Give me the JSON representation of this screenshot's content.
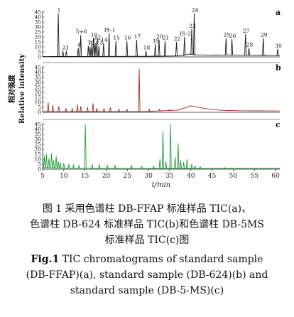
{
  "chart_data": {
    "type": "line",
    "ylabel_cn": "相对强度",
    "ylabel_en": "Relative intensity",
    "xlabel": "t/min",
    "xlim": [
      5,
      61
    ],
    "ylim": [
      0,
      45
    ],
    "x_ticks": [
      5,
      10,
      15,
      20,
      25,
      30,
      35,
      40,
      45,
      50,
      55,
      60
    ],
    "y_ticks": [
      0,
      5,
      10,
      15,
      20,
      25,
      30,
      35,
      40,
      45
    ],
    "panels": [
      {
        "label": "a",
        "color": "#1a1a1a",
        "baseline": [
          [
            5,
            0.3
          ],
          [
            30,
            0.6
          ],
          [
            38,
            1.0
          ],
          [
            39.5,
            2.8
          ],
          [
            41,
            2.0
          ],
          [
            45,
            1.8
          ],
          [
            55,
            1.5
          ],
          [
            61,
            1.3
          ]
        ],
        "peaks": [
          {
            "x": 8.7,
            "y": 44,
            "label": "1"
          },
          {
            "x": 9.8,
            "y": 6,
            "label": "2"
          },
          {
            "x": 10.6,
            "y": 6,
            "label": "3"
          },
          {
            "x": 13.4,
            "y": 9,
            "label": "4"
          },
          {
            "x": 14.0,
            "y": 22,
            "label": "5+6"
          },
          {
            "x": 15.8,
            "y": 11,
            "label": "7"
          },
          {
            "x": 16.2,
            "y": 10,
            "label": "8"
          },
          {
            "x": 16.6,
            "y": 11,
            "label": "9"
          },
          {
            "x": 17.0,
            "y": 19,
            "label": "10"
          },
          {
            "x": 17.4,
            "y": 14,
            "label": "11"
          },
          {
            "x": 17.8,
            "y": 16,
            "label": "12"
          },
          {
            "x": 18.3,
            "y": 11,
            "label": "13"
          },
          {
            "x": 19.4,
            "y": 14,
            "label": "14"
          },
          {
            "x": 20.7,
            "y": 24,
            "label": "IS-1"
          },
          {
            "x": 22.3,
            "y": 16,
            "label": "15"
          },
          {
            "x": 24.9,
            "y": 16,
            "label": "16"
          },
          {
            "x": 27.2,
            "y": 17,
            "label": "17"
          },
          {
            "x": 29.4,
            "y": 6,
            "label": "18"
          },
          {
            "x": 31.6,
            "y": 13,
            "label": "19"
          },
          {
            "x": 32.5,
            "y": 17,
            "label": "20"
          },
          {
            "x": 33.9,
            "y": 16,
            "label": "21"
          },
          {
            "x": 36.6,
            "y": 15,
            "label": "22"
          },
          {
            "x": 38.5,
            "y": 20,
            "label": "IS-2"
          },
          {
            "x": 40.2,
            "y": 28,
            "label": "23"
          },
          {
            "x": 40.8,
            "y": 44,
            "label": "24"
          },
          {
            "x": 48.3,
            "y": 19,
            "label": "25"
          },
          {
            "x": 49.7,
            "y": 18,
            "label": "26"
          },
          {
            "x": 52.9,
            "y": 23,
            "label": "27"
          },
          {
            "x": 53.7,
            "y": 9,
            "label": "28"
          },
          {
            "x": 57.1,
            "y": 19,
            "label": "29"
          },
          {
            "x": 60.5,
            "y": 8,
            "label": "30"
          }
        ]
      },
      {
        "label": "b",
        "color": "#a32828",
        "baseline": [
          [
            5,
            0.6
          ],
          [
            30,
            0.9
          ],
          [
            37,
            2.2
          ],
          [
            40,
            6.5
          ],
          [
            43,
            4.0
          ],
          [
            47,
            2.0
          ],
          [
            52,
            1.5
          ],
          [
            61,
            1.3
          ]
        ],
        "peaks": [
          {
            "x": 6.3,
            "y": 10
          },
          {
            "x": 7.4,
            "y": 7
          },
          {
            "x": 8.8,
            "y": 6
          },
          {
            "x": 10.5,
            "y": 4
          },
          {
            "x": 12.0,
            "y": 4
          },
          {
            "x": 13.2,
            "y": 8
          },
          {
            "x": 14.0,
            "y": 6
          },
          {
            "x": 15.6,
            "y": 5
          },
          {
            "x": 16.9,
            "y": 9
          },
          {
            "x": 17.8,
            "y": 4
          },
          {
            "x": 19.5,
            "y": 4
          },
          {
            "x": 21.0,
            "y": 5
          },
          {
            "x": 23.0,
            "y": 3
          },
          {
            "x": 24.9,
            "y": 3
          },
          {
            "x": 27.8,
            "y": 44
          },
          {
            "x": 30.2,
            "y": 3
          },
          {
            "x": 32.6,
            "y": 3
          },
          {
            "x": 35.1,
            "y": 2.5
          }
        ]
      },
      {
        "label": "c",
        "color": "#1f9a3a",
        "baseline": [
          [
            5,
            1.5
          ],
          [
            11,
            1.0
          ],
          [
            20,
            0.8
          ],
          [
            40,
            0.7
          ],
          [
            61,
            0.7
          ]
        ],
        "peaks": [
          {
            "x": 5.4,
            "y": 13
          },
          {
            "x": 5.9,
            "y": 15
          },
          {
            "x": 6.5,
            "y": 11
          },
          {
            "x": 7.1,
            "y": 16
          },
          {
            "x": 7.6,
            "y": 9
          },
          {
            "x": 8.2,
            "y": 13
          },
          {
            "x": 8.7,
            "y": 8
          },
          {
            "x": 9.2,
            "y": 7
          },
          {
            "x": 10.0,
            "y": 6
          },
          {
            "x": 11.2,
            "y": 5
          },
          {
            "x": 12.3,
            "y": 4
          },
          {
            "x": 13.6,
            "y": 4
          },
          {
            "x": 15.1,
            "y": 45
          },
          {
            "x": 16.7,
            "y": 5
          },
          {
            "x": 18.4,
            "y": 5
          },
          {
            "x": 20.3,
            "y": 4
          },
          {
            "x": 22.1,
            "y": 4
          },
          {
            "x": 26.0,
            "y": 4
          },
          {
            "x": 28.4,
            "y": 3
          },
          {
            "x": 31.2,
            "y": 3
          },
          {
            "x": 32.7,
            "y": 10
          },
          {
            "x": 33.4,
            "y": 38
          },
          {
            "x": 34.1,
            "y": 8
          },
          {
            "x": 35.2,
            "y": 45
          },
          {
            "x": 36.3,
            "y": 12
          },
          {
            "x": 37.0,
            "y": 26
          },
          {
            "x": 37.6,
            "y": 9
          },
          {
            "x": 38.3,
            "y": 7
          },
          {
            "x": 39.1,
            "y": 10
          },
          {
            "x": 40.2,
            "y": 5
          },
          {
            "x": 41.0,
            "y": 3
          },
          {
            "x": 42.2,
            "y": 2.5
          },
          {
            "x": 48.0,
            "y": 1.5
          }
        ]
      }
    ]
  },
  "caption": {
    "cn_line1": "图 1   采用色谱柱 DB-FFAP 标准样品 TIC(a)、",
    "cn_line2": "色谱柱 DB-624 标准样品 TIC(b)和色谱柱 DB-5MS",
    "cn_line3": "标准样品 TIC(c)图",
    "en_fig": "Fig.1",
    "en_line1_rest": "  TIC chromatograms of standard sample",
    "en_line2": "(DB-FFAP)(a), standard sample (DB-624)(b) and",
    "en_line3": "standard sample (DB-5-MS)(c)"
  }
}
